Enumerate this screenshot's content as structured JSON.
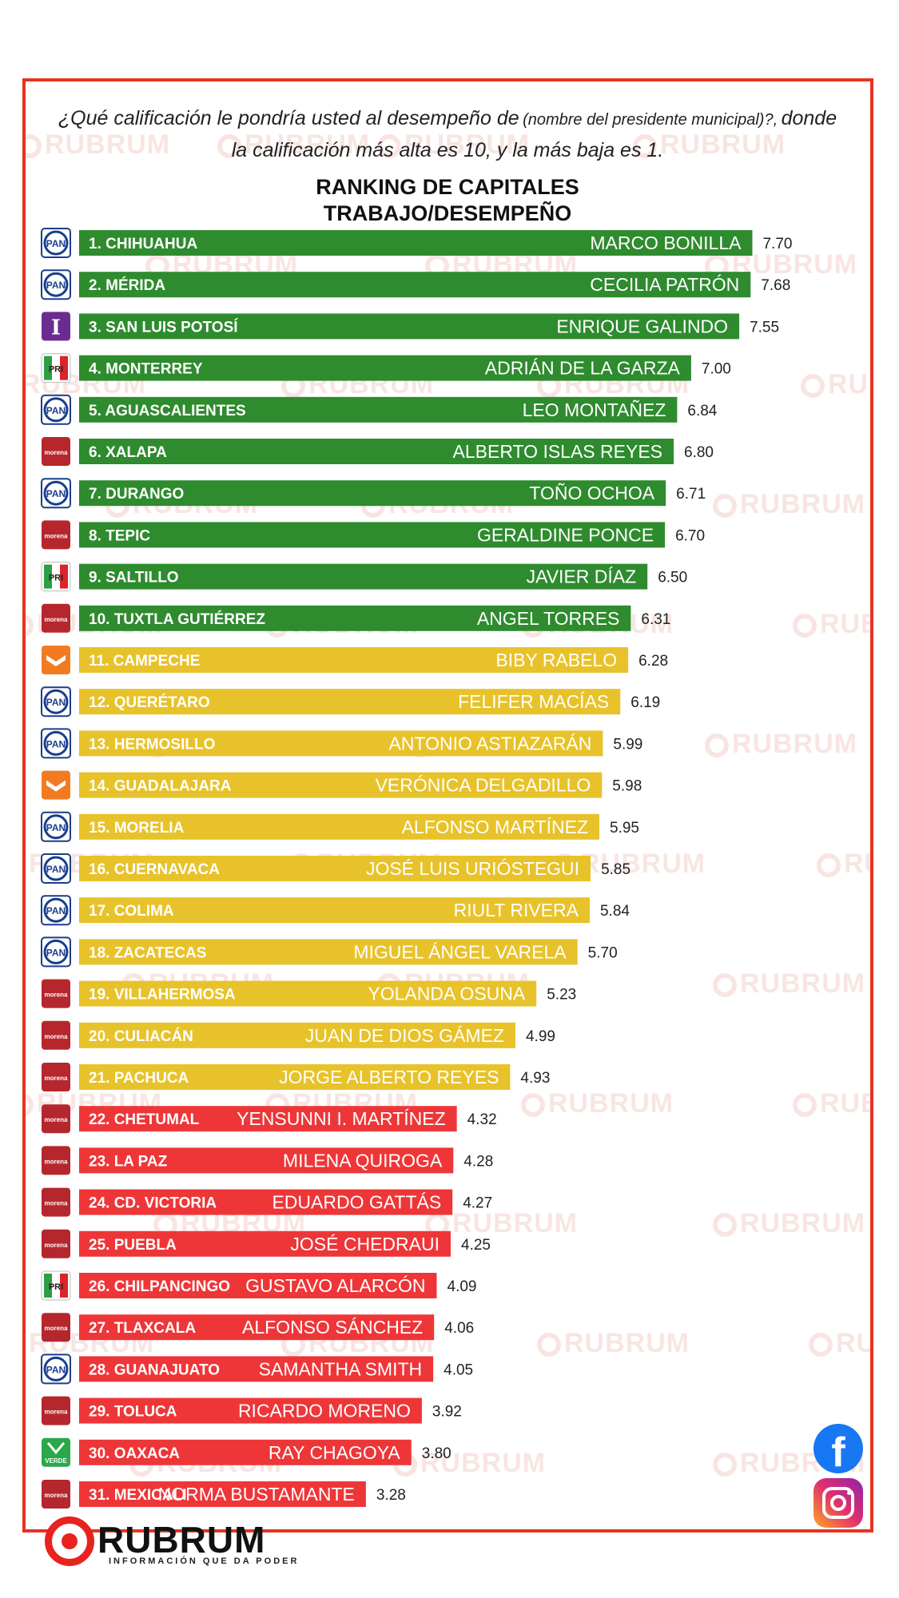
{
  "question": {
    "part1": "¿Qué calificación le pondría usted al desempeño de",
    "part2": "(nombre del presidente municipal)?,",
    "part3": "donde la calificación más alta es 10, y la más baja es 1."
  },
  "watermark_text": "RUBRUM",
  "brand": {
    "name": "RUBRUM",
    "tagline": "INFORMACIÓN QUE DA PODER",
    "color": "#e8231f"
  },
  "social": {
    "facebook_glyph": "f",
    "facebook_icon": "facebook-icon",
    "instagram_icon": "instagram-icon"
  },
  "colors": {
    "green": "#2e8b2e",
    "yellow": "#e8c22a",
    "red": "#ee3638",
    "frame": "#e8331f"
  },
  "chart_data": {
    "type": "bar",
    "orientation": "horizontal",
    "title": [
      "RANKING DE CAPITALES",
      "TRABAJO/DESEMPEÑO"
    ],
    "xlim": [
      0,
      10
    ],
    "grid": false,
    "legend": "none",
    "rows": [
      {
        "rank": "1.",
        "city": "CHIHUAHUA",
        "mayor": "MARCO BONILLA",
        "value": 7.7,
        "value_label": "7.70",
        "party": "PAN",
        "band": "green"
      },
      {
        "rank": "2.",
        "city": "MÉRIDA",
        "mayor": "CECILIA PATRÓN",
        "value": 7.68,
        "value_label": "7.68",
        "party": "PAN",
        "band": "green"
      },
      {
        "rank": "3.",
        "city": "SAN LUIS POTOSÍ",
        "mayor": "ENRIQUE GALINDO",
        "value": 7.55,
        "value_label": "7.55",
        "party": "I",
        "band": "green"
      },
      {
        "rank": "4.",
        "city": "MONTERREY",
        "mayor": "ADRIÁN DE LA GARZA",
        "value": 7.0,
        "value_label": "7.00",
        "party": "PRI",
        "band": "green"
      },
      {
        "rank": "5.",
        "city": "AGUASCALIENTES",
        "mayor": "LEO MONTAÑEZ",
        "value": 6.84,
        "value_label": "6.84",
        "party": "PAN",
        "band": "green"
      },
      {
        "rank": "6.",
        "city": "XALAPA",
        "mayor": "ALBERTO ISLAS REYES",
        "value": 6.8,
        "value_label": "6.80",
        "party": "morena",
        "band": "green"
      },
      {
        "rank": "7.",
        "city": "DURANGO",
        "mayor": "TOÑO OCHOA",
        "value": 6.71,
        "value_label": "6.71",
        "party": "PAN",
        "band": "green"
      },
      {
        "rank": "8.",
        "city": "TEPIC",
        "mayor": "GERALDINE PONCE",
        "value": 6.7,
        "value_label": "6.70",
        "party": "morena",
        "band": "green"
      },
      {
        "rank": "9.",
        "city": "SALTILLO",
        "mayor": "JAVIER DÍAZ",
        "value": 6.5,
        "value_label": "6.50",
        "party": "PRI",
        "band": "green"
      },
      {
        "rank": "10.",
        "city": "TUXTLA GUTIÉRREZ",
        "mayor": "ANGEL TORRES",
        "value": 6.31,
        "value_label": "6.31",
        "party": "morena",
        "band": "green"
      },
      {
        "rank": "11.",
        "city": "CAMPECHE",
        "mayor": "BIBY RABELO",
        "value": 6.28,
        "value_label": "6.28",
        "party": "MC",
        "band": "yellow"
      },
      {
        "rank": "12.",
        "city": "QUERÉTARO",
        "mayor": "FELIFER MACÍAS",
        "value": 6.19,
        "value_label": "6.19",
        "party": "PAN",
        "band": "yellow"
      },
      {
        "rank": "13.",
        "city": "HERMOSILLO",
        "mayor": "ANTONIO ASTIAZARÁN",
        "value": 5.99,
        "value_label": "5.99",
        "party": "PAN",
        "band": "yellow"
      },
      {
        "rank": "14.",
        "city": "GUADALAJARA",
        "mayor": "VERÓNICA DELGADILLO",
        "value": 5.98,
        "value_label": "5.98",
        "party": "MC",
        "band": "yellow"
      },
      {
        "rank": "15.",
        "city": "MORELIA",
        "mayor": "ALFONSO MARTÍNEZ",
        "value": 5.95,
        "value_label": "5.95",
        "party": "PAN",
        "band": "yellow"
      },
      {
        "rank": "16.",
        "city": "CUERNAVACA",
        "mayor": "JOSÉ LUIS URIÓSTEGUI",
        "value": 5.85,
        "value_label": "5.85",
        "party": "PAN",
        "band": "yellow"
      },
      {
        "rank": "17.",
        "city": "COLIMA",
        "mayor": "RIULT RIVERA",
        "value": 5.84,
        "value_label": "5.84",
        "party": "PAN",
        "band": "yellow"
      },
      {
        "rank": "18.",
        "city": "ZACATECAS",
        "mayor": "MIGUEL ÁNGEL VARELA",
        "value": 5.7,
        "value_label": "5.70",
        "party": "PAN",
        "band": "yellow"
      },
      {
        "rank": "19.",
        "city": "VILLAHERMOSA",
        "mayor": "YOLANDA OSUNA",
        "value": 5.23,
        "value_label": "5.23",
        "party": "morena",
        "band": "yellow"
      },
      {
        "rank": "20.",
        "city": "CULIACÁN",
        "mayor": "JUAN DE DIOS GÁMEZ",
        "value": 4.99,
        "value_label": "4.99",
        "party": "morena",
        "band": "yellow"
      },
      {
        "rank": "21.",
        "city": "PACHUCA",
        "mayor": "JORGE ALBERTO REYES",
        "value": 4.93,
        "value_label": "4.93",
        "party": "morena",
        "band": "yellow"
      },
      {
        "rank": "22.",
        "city": "CHETUMAL",
        "mayor": "YENSUNNI I. MARTÍNEZ",
        "value": 4.32,
        "value_label": "4.32",
        "party": "morena",
        "band": "red"
      },
      {
        "rank": "23.",
        "city": "LA PAZ",
        "mayor": "MILENA QUIROGA",
        "value": 4.28,
        "value_label": "4.28",
        "party": "morena",
        "band": "red"
      },
      {
        "rank": "24.",
        "city": "CD. VICTORIA",
        "mayor": "EDUARDO GATTÁS",
        "value": 4.27,
        "value_label": "4.27",
        "party": "morena",
        "band": "red"
      },
      {
        "rank": "25.",
        "city": "PUEBLA",
        "mayor": "JOSÉ CHEDRAUI",
        "value": 4.25,
        "value_label": "4.25",
        "party": "morena",
        "band": "red"
      },
      {
        "rank": "26.",
        "city": "CHILPANCINGO",
        "mayor": "GUSTAVO ALARCÓN",
        "value": 4.09,
        "value_label": "4.09",
        "party": "PRI",
        "band": "red"
      },
      {
        "rank": "27.",
        "city": "TLAXCALA",
        "mayor": "ALFONSO SÁNCHEZ",
        "value": 4.06,
        "value_label": "4.06",
        "party": "morena",
        "band": "red"
      },
      {
        "rank": "28.",
        "city": "GUANAJUATO",
        "mayor": "SAMANTHA SMITH",
        "value": 4.05,
        "value_label": "4.05",
        "party": "PAN",
        "band": "red"
      },
      {
        "rank": "29.",
        "city": "TOLUCA",
        "mayor": "RICARDO MORENO",
        "value": 3.92,
        "value_label": "3.92",
        "party": "morena",
        "band": "red"
      },
      {
        "rank": "30.",
        "city": "OAXACA",
        "mayor": "RAY CHAGOYA",
        "value": 3.8,
        "value_label": "3.80",
        "party": "VERDE",
        "band": "red"
      },
      {
        "rank": "31.",
        "city": "MEXICALI",
        "mayor": "NORMA BUSTAMANTE",
        "value": 3.28,
        "value_label": "3.28",
        "party": "morena",
        "band": "red"
      }
    ]
  }
}
